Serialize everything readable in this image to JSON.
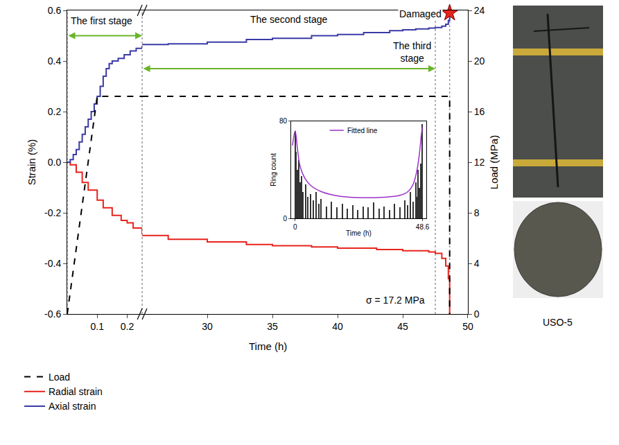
{
  "chart_data": [
    {
      "type": "line",
      "x_label": "Time (h)",
      "y_label": "Strain (%)",
      "y2_label": "Load (MPa)",
      "x_segments": [
        {
          "xlim": [
            0,
            0.25
          ],
          "xticks": [
            0.1,
            0.2
          ]
        },
        {
          "xlim": [
            25,
            50
          ],
          "xticks": [
            30,
            35,
            40,
            45,
            50
          ]
        }
      ],
      "ylim": [
        -0.6,
        0.6
      ],
      "yticks": [
        -0.6,
        -0.4,
        -0.2,
        {
          "value": 0,
          "label": "0.0"
        },
        0.2,
        0.4,
        0.6
      ],
      "y2lim": [
        0,
        24
      ],
      "y2ticks": [
        0,
        4,
        8,
        12,
        16,
        20,
        24
      ],
      "grid": false,
      "legend": "bottom left",
      "series": [
        {
          "name": "Load",
          "color": "#000000",
          "line_style": "dashed",
          "axis": "y2",
          "x": [
            0,
            0.1,
            0.25,
            25,
            48.6,
            48.6
          ],
          "values": [
            0,
            17.2,
            17.2,
            17.2,
            17.2,
            0
          ]
        },
        {
          "name": "Radial strain",
          "color": "#e8231c",
          "line_style": "solid",
          "x": [
            0,
            0.01,
            0.03,
            0.05,
            0.07,
            0.1,
            0.12,
            0.15,
            0.18,
            0.2,
            0.22,
            0.25,
            25,
            27,
            30,
            33,
            35,
            38,
            40,
            43,
            45,
            47,
            47.5,
            48,
            48.3,
            48.5,
            48.6
          ],
          "values": [
            0,
            -0.01,
            -0.04,
            -0.08,
            -0.11,
            -0.15,
            -0.18,
            -0.21,
            -0.23,
            -0.24,
            -0.26,
            -0.285,
            -0.29,
            -0.305,
            -0.315,
            -0.325,
            -0.33,
            -0.335,
            -0.34,
            -0.345,
            -0.35,
            -0.355,
            -0.36,
            -0.38,
            -0.41,
            -0.46,
            -0.6
          ]
        },
        {
          "name": "Axial strain",
          "color": "#3a3aa8",
          "line_style": "solid",
          "x": [
            0,
            0.01,
            0.02,
            0.03,
            0.04,
            0.05,
            0.06,
            0.07,
            0.08,
            0.09,
            0.1,
            0.11,
            0.12,
            0.13,
            0.14,
            0.15,
            0.17,
            0.19,
            0.21,
            0.23,
            0.25,
            25,
            27,
            30,
            33,
            35,
            38,
            40,
            42,
            44,
            45,
            46,
            47,
            47.5,
            48,
            48.3,
            48.5,
            48.6
          ],
          "values": [
            0,
            0.01,
            0.03,
            0.05,
            0.08,
            0.11,
            0.14,
            0.17,
            0.2,
            0.23,
            0.26,
            0.3,
            0.34,
            0.37,
            0.39,
            0.4,
            0.41,
            0.425,
            0.44,
            0.45,
            0.46,
            0.465,
            0.468,
            0.475,
            0.485,
            0.49,
            0.5,
            0.505,
            0.512,
            0.52,
            0.523,
            0.527,
            0.53,
            0.532,
            0.538,
            0.545,
            0.56,
            0.595
          ]
        }
      ],
      "stages": [
        {
          "text": "The first stage",
          "from": 0,
          "to": 0.25
        },
        {
          "text": "The second stage",
          "from": 0.25,
          "to": 47.5
        },
        {
          "text": "The third stage",
          "from": 47.5,
          "to": 48.6
        }
      ],
      "damaged": {
        "text": "Damaged",
        "x": 48.6,
        "y": 0.59,
        "marker": "star",
        "color": "#e8231c"
      },
      "annotations": [
        {
          "text": "σ = 17.2 MPa"
        }
      ],
      "sample_label": "USO-5"
    },
    {
      "type": "bar",
      "x_label": "Time (h)",
      "y_label": "Ring count",
      "xlim": [
        -1.5,
        50
      ],
      "xticks": [
        0,
        48.6
      ],
      "ylim": [
        0,
        80
      ],
      "yticks": [
        0,
        80
      ],
      "color": "#333333",
      "x": [
        0,
        0.5,
        1,
        1.5,
        2,
        2.5,
        3,
        4,
        5,
        6,
        7,
        8,
        9,
        10,
        12,
        14,
        16,
        18,
        20,
        22,
        24,
        26,
        28,
        30,
        32,
        34,
        36,
        38,
        40,
        42,
        43,
        44,
        45,
        46,
        46.5,
        47,
        47.5,
        48,
        48.3,
        48.6
      ],
      "values": [
        72,
        55,
        40,
        48,
        30,
        35,
        22,
        28,
        18,
        20,
        15,
        22,
        12,
        16,
        10,
        14,
        9,
        12,
        8,
        11,
        7,
        10,
        9,
        13,
        8,
        10,
        7,
        12,
        9,
        15,
        11,
        22,
        14,
        30,
        18,
        40,
        25,
        45,
        35,
        78
      ],
      "fit": {
        "name": "Fitted line",
        "color": "#9b30c8",
        "x": [
          -1,
          0,
          1,
          2,
          4,
          6,
          10,
          15,
          20,
          25,
          30,
          35,
          40,
          43,
          45,
          46.5,
          47.5,
          48.2,
          48.6
        ],
        "values": [
          60,
          72,
          55,
          42,
          32,
          27,
          22,
          19,
          17.5,
          17,
          17,
          17.5,
          19,
          22,
          28,
          40,
          55,
          70,
          75
        ]
      }
    }
  ]
}
